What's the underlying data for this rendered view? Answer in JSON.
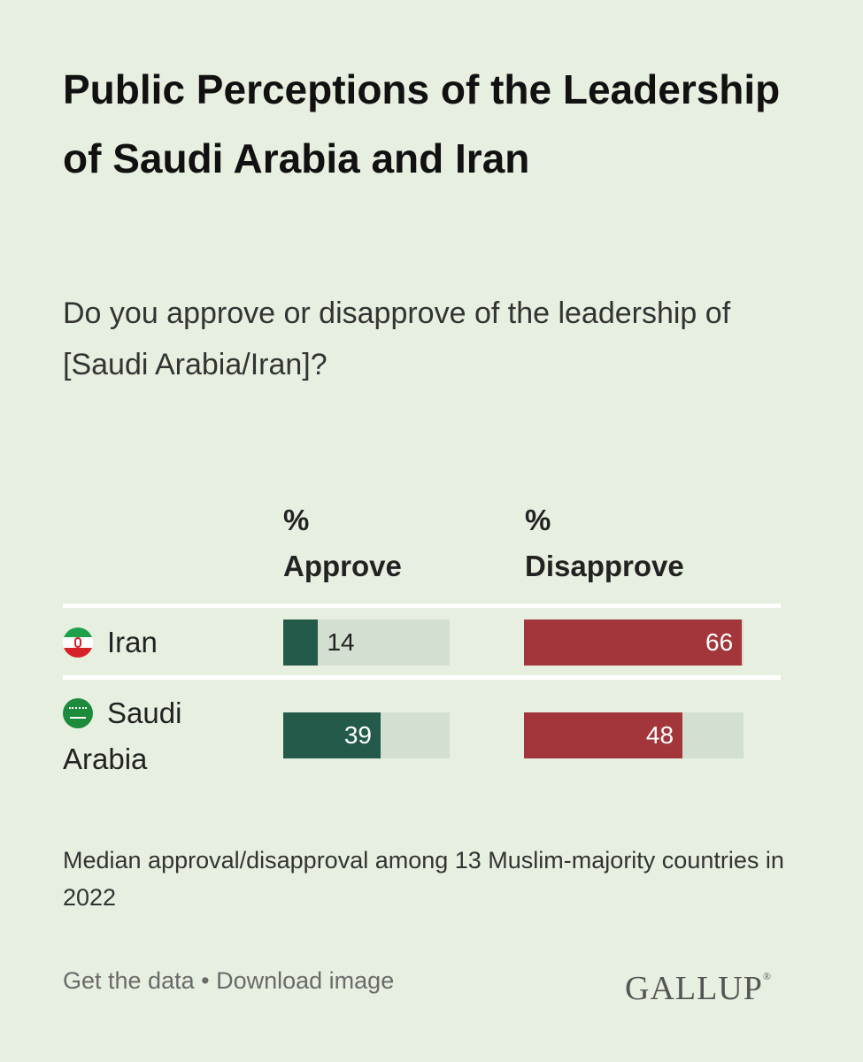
{
  "title": "Public Perceptions of the Leadership of Saudi Arabia and Iran",
  "subtitle": "Do you approve or disapprove of the leadership of [Saudi Arabia/Iran]?",
  "colors": {
    "approve": "#245a4a",
    "disapprove": "#a3363a",
    "track": "#d3dfd0",
    "background": "#e7f0e0"
  },
  "chart_data": {
    "type": "bar",
    "categories": [
      "Iran",
      "Saudi Arabia"
    ],
    "category_icons": [
      "iran-flag-icon",
      "saudi-arabia-flag-icon"
    ],
    "series": [
      {
        "name": "% Approve",
        "header_lines": [
          "%",
          "Approve"
        ],
        "values": [
          14,
          39
        ]
      },
      {
        "name": "% Disapprove",
        "header_lines": [
          "%",
          "Disapprove"
        ],
        "values": [
          66,
          48
        ]
      }
    ],
    "ylim": [
      0,
      100
    ],
    "legend": "column headers",
    "grid": false
  },
  "note": "Median approval/disapproval among 13 Muslim-majority countries in 2022",
  "footer": {
    "get_data": "Get the data",
    "separator": "•",
    "download": "Download image",
    "logo": "GALLUP",
    "logo_mark": "®"
  }
}
